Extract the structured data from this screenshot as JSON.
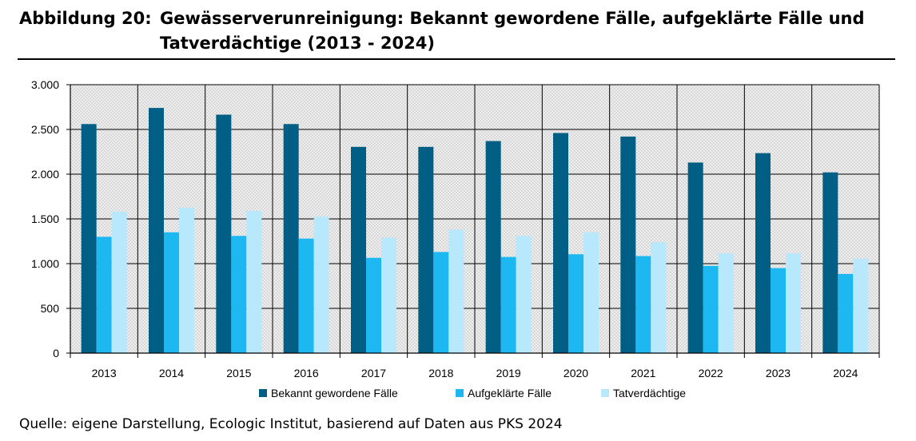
{
  "caption": {
    "label": "Abbildung 20:",
    "title": "Gewässerverunreinigung: Bekannt gewordene Fälle, aufgeklärte Fälle und Tatverdächtige (2013 - 2024)"
  },
  "source": "Quelle: eigene Darstellung, Ecologic Institut, basierend auf Daten aus PKS 2024",
  "colors": {
    "bekannt": "#015e84",
    "aufgeklaert": "#1db8f2",
    "tatverdaechtige": "#b8e8fb"
  },
  "chart_data": {
    "type": "bar",
    "title": "",
    "xlabel": "",
    "ylabel": "",
    "categories": [
      "2013",
      "2014",
      "2015",
      "2016",
      "2017",
      "2018",
      "2019",
      "2020",
      "2021",
      "2022",
      "2023",
      "2024"
    ],
    "series": [
      {
        "name": "Bekannt gewordene Fälle",
        "values": [
          2560,
          2740,
          2665,
          2560,
          2305,
          2305,
          2370,
          2460,
          2420,
          2130,
          2235,
          2020
        ]
      },
      {
        "name": "Aufgeklärte Fälle",
        "values": [
          1300,
          1350,
          1310,
          1280,
          1065,
          1130,
          1075,
          1105,
          1085,
          975,
          950,
          885
        ]
      },
      {
        "name": "Tatverdächtige",
        "values": [
          1580,
          1625,
          1590,
          1525,
          1290,
          1380,
          1310,
          1350,
          1240,
          1115,
          1115,
          1055
        ]
      }
    ],
    "ylim": [
      0,
      3000
    ],
    "yticks": [
      0,
      500,
      1000,
      1500,
      2000,
      2500,
      3000
    ],
    "ytick_labels": [
      "0",
      "500",
      "1.000",
      "1.500",
      "2.000",
      "2.500",
      "3.000"
    ],
    "legend_position": "bottom"
  }
}
